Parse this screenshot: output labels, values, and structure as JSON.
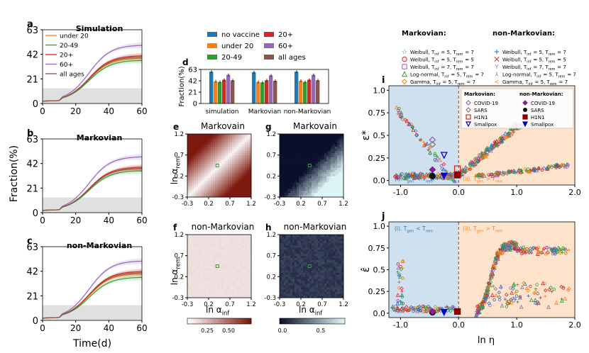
{
  "panels": {
    "a": {
      "letter": "a",
      "title": "Simulation"
    },
    "b": {
      "letter": "b",
      "title": "Markovian"
    },
    "c": {
      "letter": "c",
      "title": "non-Markovian"
    },
    "d": {
      "letter": "d"
    },
    "e": {
      "letter": "e",
      "title": "Markovain"
    },
    "f": {
      "letter": "f",
      "title": "non-Markovian"
    },
    "g": {
      "letter": "g",
      "title": "Markovain"
    },
    "h": {
      "letter": "h",
      "title": "non-Markovian"
    },
    "i": {
      "letter": "i"
    },
    "j": {
      "letter": "j"
    }
  },
  "labels": {
    "fraction_ylabel": "Fraction(%)",
    "time_xlabel": "Time(d)",
    "d_ylabel": "Fraction(%)",
    "alpha_rem": "ln α_rem",
    "alpha_inf": "ln α_inf",
    "eps_star": "ε*",
    "eps_hat": "ε̂",
    "ln_eta": "ln η",
    "regime_i": "(i). T_gen < T_rem",
    "regime_ii": "(ii). T_gen > T_rem"
  },
  "legend_top": {
    "markovian_header": "Markovian:",
    "non_markovian_header": "non-Markovian:",
    "markovian_items": [
      {
        "marker": "star",
        "color": "#1f77b4",
        "label": "Weibull, T_inf = 5, T_rem = 7"
      },
      {
        "marker": "circle",
        "color": "#d62728",
        "label": "Weibull, T_inf = 5, T_rem = 5"
      },
      {
        "marker": "square",
        "color": "#9467bd",
        "label": "Weibull, T_inf = 7, T_rem = 7"
      },
      {
        "marker": "triangle",
        "color": "#2ca02c",
        "label": "Log-normal, T_inf = 5, T_rem = 7"
      },
      {
        "marker": "diamond",
        "color": "#ff7f0e",
        "label": "Gamma, T_inf = 5, T_rem = 7"
      }
    ],
    "non_markovian_items": [
      {
        "marker": "plus",
        "color": "#1f77b4",
        "label": "Weibull, T_inf = 5, T_rem = 7"
      },
      {
        "marker": "x",
        "color": "#d62728",
        "label": "Weibull, T_inf = 5, T_rem = 5"
      },
      {
        "marker": "tri_down",
        "color": "#9467bd",
        "label": "Weibull, T_inf = 7, T_rem = 7"
      },
      {
        "marker": "tri_up",
        "color": "#2ca02c",
        "label": "Log-normal, T_inf = 5, T_rem = 7"
      },
      {
        "marker": "tri_left",
        "color": "#ff7f0e",
        "label": "Gamma, T_inf = 5, T_rem = 7"
      }
    ]
  },
  "legend_i": {
    "markovian_header": "Markovian:",
    "non_markovian_header": "non-Markovian:",
    "markovian_items": [
      {
        "marker": "diamond_open",
        "color": "#9467bd",
        "label": "COVID-19"
      },
      {
        "marker": "diamond_open",
        "color": "#7f7f7f",
        "label": "SARS"
      },
      {
        "marker": "square_open",
        "color": "#d62728",
        "label": "H1N1"
      },
      {
        "marker": "tri_down_open",
        "color": "#0000cc",
        "label": "Smallpox"
      }
    ],
    "non_markovian_items": [
      {
        "marker": "diamond_fill",
        "color": "#8b1a9c",
        "label": "COVID-19"
      },
      {
        "marker": "circle_fill",
        "color": "#111111",
        "label": "SARS"
      },
      {
        "marker": "square_fill",
        "color": "#8b0000",
        "label": "H1N1"
      },
      {
        "marker": "tri_down_fill",
        "color": "#0000cc",
        "label": "Smallpox"
      }
    ]
  },
  "legend_a": [
    {
      "label": "under 20",
      "color": "#ff7f0e"
    },
    {
      "label": "20-49",
      "color": "#2ca02c"
    },
    {
      "label": "20+",
      "color": "#d62728"
    },
    {
      "label": "60+",
      "color": "#9467bd"
    },
    {
      "label": "all ages",
      "color": "#8c564b"
    }
  ],
  "legend_d": [
    {
      "label": "no vaccine",
      "color": "#1f77b4"
    },
    {
      "label": "20+",
      "color": "#d62728"
    },
    {
      "label": "under 20",
      "color": "#ff7f0e"
    },
    {
      "label": "60+",
      "color": "#9467bd"
    },
    {
      "label": "20-49",
      "color": "#2ca02c"
    },
    {
      "label": "all ages",
      "color": "#8c564b"
    }
  ],
  "colorbars": {
    "left": {
      "ticks": [
        "0.25",
        "0.50"
      ]
    },
    "right": {
      "ticks": [
        "0.0",
        "0.5"
      ]
    }
  },
  "chart_data": [
    {
      "type": "line",
      "panel": "a",
      "title": "Simulation",
      "xlabel": "Time(d)",
      "ylabel": "Fraction(%)",
      "x_ticks": [
        "0",
        "20",
        "40",
        "60"
      ],
      "y_ticks": [
        "0",
        "21",
        "42",
        "63"
      ],
      "xlim": [
        0,
        60
      ],
      "ylim": [
        0,
        63
      ],
      "shaded_band": [
        0,
        13
      ],
      "series": [
        {
          "name": "under 20",
          "color": "#ff7f0e",
          "final": 39
        },
        {
          "name": "20-49",
          "color": "#2ca02c",
          "final": 37
        },
        {
          "name": "20+",
          "color": "#d62728",
          "final": 41
        },
        {
          "name": "60+",
          "color": "#9467bd",
          "final": 50
        },
        {
          "name": "all ages",
          "color": "#8c564b",
          "final": 40
        }
      ]
    },
    {
      "type": "line",
      "panel": "b",
      "title": "Markovian",
      "xlabel": "Time(d)",
      "ylabel": "Fraction(%)",
      "x_ticks": [
        "0",
        "20",
        "40",
        "60"
      ],
      "y_ticks": [
        "0",
        "21",
        "42",
        "63"
      ],
      "xlim": [
        0,
        60
      ],
      "ylim": [
        0,
        63
      ],
      "shaded_band": [
        0,
        13
      ],
      "series": [
        {
          "name": "under 20",
          "color": "#ff7f0e",
          "final": 38
        },
        {
          "name": "20-49",
          "color": "#2ca02c",
          "final": 36
        },
        {
          "name": "20+",
          "color": "#d62728",
          "final": 39
        },
        {
          "name": "60+",
          "color": "#9467bd",
          "final": 48
        },
        {
          "name": "all ages",
          "color": "#8c564b",
          "final": 38
        }
      ]
    },
    {
      "type": "line",
      "panel": "c",
      "title": "non-Markovian",
      "xlabel": "Time(d)",
      "ylabel": "Fraction(%)",
      "x_ticks": [
        "0",
        "20",
        "40",
        "60"
      ],
      "y_ticks": [
        "0",
        "21",
        "42",
        "63"
      ],
      "xlim": [
        0,
        60
      ],
      "ylim": [
        0,
        63
      ],
      "shaded_band": [
        0,
        13
      ],
      "series": [
        {
          "name": "under 20",
          "color": "#ff7f0e",
          "final": 40
        },
        {
          "name": "20-49",
          "color": "#2ca02c",
          "final": 37
        },
        {
          "name": "20+",
          "color": "#d62728",
          "final": 42
        },
        {
          "name": "60+",
          "color": "#9467bd",
          "final": 51
        },
        {
          "name": "all ages",
          "color": "#8c564b",
          "final": 41
        }
      ]
    },
    {
      "type": "bar",
      "panel": "d",
      "ylabel": "Fraction(%)",
      "categories": [
        "simulation",
        "Markovian",
        "non-Markovian"
      ],
      "y_ticks": [
        "0",
        "21",
        "42",
        "63"
      ],
      "ylim": [
        0,
        63
      ],
      "series": [
        {
          "name": "no vaccine",
          "color": "#1f77b4",
          "values": [
            59,
            58,
            59
          ]
        },
        {
          "name": "under 20",
          "color": "#ff7f0e",
          "values": [
            41,
            40,
            42
          ]
        },
        {
          "name": "20-49",
          "color": "#2ca02c",
          "values": [
            40,
            39,
            40
          ]
        },
        {
          "name": "20+",
          "color": "#d62728",
          "values": [
            44,
            43,
            44
          ]
        },
        {
          "name": "60+",
          "color": "#9467bd",
          "values": [
            53,
            52,
            53
          ]
        },
        {
          "name": "all ages",
          "color": "#8c564b",
          "values": [
            43,
            42,
            43
          ]
        }
      ]
    },
    {
      "type": "heatmap",
      "panels": [
        "e",
        "f",
        "g",
        "h"
      ],
      "xlabel": "ln α_inf",
      "ylabel": "ln α_rem",
      "tick_labels": [
        "-0.3",
        "0.2",
        "0.7",
        "1.2"
      ],
      "x_ticks": [
        "-0.3",
        "0.2",
        "0.7",
        "1.2"
      ],
      "y_ticks": [
        "-0.3",
        "0.2",
        "0.7",
        "1.2"
      ],
      "range": [
        -0.3,
        1.2
      ]
    },
    {
      "type": "scatter",
      "panel": "i",
      "xlabel": "ln η",
      "ylabel": "ε*",
      "x_ticks": [
        "-1.0",
        "0.0",
        "1.0",
        "2.0"
      ],
      "y_ticks": [
        "0.0",
        "0.25",
        "0.5",
        "0.75",
        "1.0"
      ],
      "xlim": [
        -1.2,
        2.0
      ],
      "ylim": [
        -0.05,
        1.05
      ],
      "boundary_x": 0.0
    },
    {
      "type": "scatter",
      "panel": "j",
      "xlabel": "ln η",
      "ylabel": "ε̂",
      "x_ticks": [
        "-1.0",
        "0.0",
        "1.0",
        "2.0"
      ],
      "y_ticks": [
        "0.0",
        "0.25",
        "0.5",
        "0.75",
        "1.0"
      ],
      "xlim": [
        -1.2,
        2.0
      ],
      "ylim": [
        -0.05,
        1.05
      ],
      "boundary_x": 0.0
    }
  ]
}
